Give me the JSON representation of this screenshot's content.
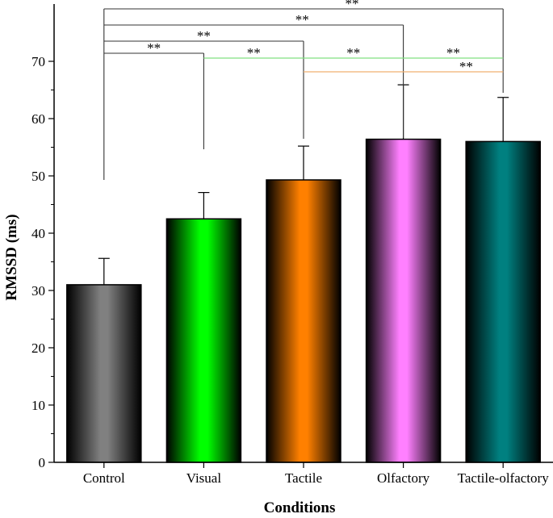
{
  "chart_data": {
    "type": "bar",
    "title": "",
    "xlabel": "Conditions",
    "ylabel": "RMSSD (ms)",
    "ylim": [
      0,
      70
    ],
    "yticks": [
      0,
      10,
      20,
      30,
      40,
      50,
      60,
      70
    ],
    "categories": [
      "Control",
      "Visual",
      "Tactile",
      "Olfactory",
      "Tactile-olfactory"
    ],
    "values": [
      31.0,
      42.5,
      49.3,
      56.4,
      56.0
    ],
    "error_upper": [
      4.6,
      4.6,
      5.9,
      9.5,
      7.7
    ],
    "bar_colors": [
      "#808080",
      "#00ff00",
      "#ff8000",
      "#ff80ff",
      "#008080"
    ],
    "grid": false,
    "legend": "none",
    "significance": [
      {
        "from": "Control",
        "to": "Visual",
        "label": "**",
        "color": "#333333"
      },
      {
        "from": "Control",
        "to": "Tactile",
        "label": "**",
        "color": "#333333"
      },
      {
        "from": "Control",
        "to": "Olfactory",
        "label": "**",
        "color": "#333333"
      },
      {
        "from": "Control",
        "to": "Tactile-olfactory",
        "label": "**",
        "color": "#333333"
      },
      {
        "from": "Visual",
        "to": "Tactile-olfactory",
        "label": "**",
        "color": "#80e080",
        "labels_at": [
          "Visual-Tactile",
          "Tactile-Olfactory",
          "Olfactory-Tactile-olfactory"
        ]
      },
      {
        "from": "Tactile",
        "to": "Tactile-olfactory",
        "label": "**",
        "color": "#f0b070"
      }
    ]
  }
}
